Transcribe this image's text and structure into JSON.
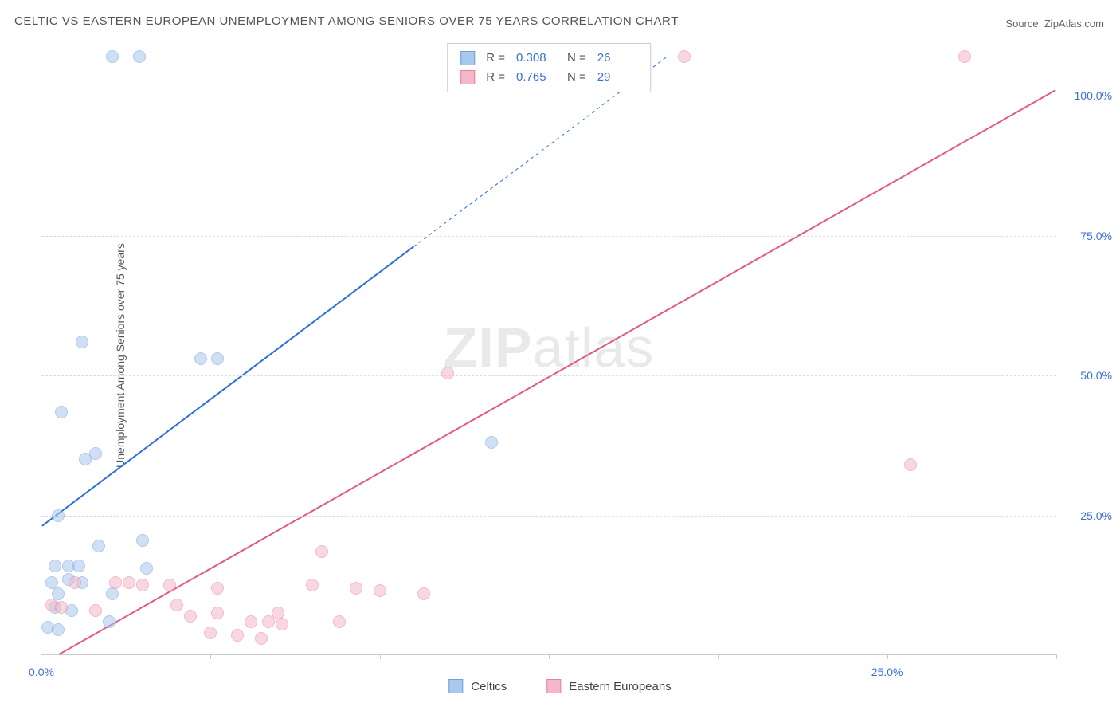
{
  "title": "CELTIC VS EASTERN EUROPEAN UNEMPLOYMENT AMONG SENIORS OVER 75 YEARS CORRELATION CHART",
  "source_label": "Source:",
  "source_name": "ZipAtlas.com",
  "y_axis_label": "Unemployment Among Seniors over 75 years",
  "watermark_prefix": "ZIP",
  "watermark_suffix": "atlas",
  "chart": {
    "type": "scatter",
    "background_color": "#ffffff",
    "grid_color": "#dddddd",
    "xlim": [
      0,
      30
    ],
    "ylim": [
      0,
      110
    ],
    "x_ticks": [
      0,
      25
    ],
    "x_tick_labels": [
      "0.0%",
      "25.0%"
    ],
    "x_minor_ticks": [
      5,
      10,
      15,
      20,
      25,
      30
    ],
    "y_ticks": [
      25,
      50,
      75,
      100
    ],
    "y_tick_labels": [
      "25.0%",
      "50.0%",
      "75.0%",
      "100.0%"
    ],
    "y_tick_color": "#3a6fd8",
    "point_radius": 8,
    "point_opacity": 0.55,
    "line_width": 2
  },
  "series": [
    {
      "name": "Celtics",
      "color_fill": "#a8c8ec",
      "color_stroke": "#6ca0dc",
      "swatch_fill": "#a8c8ec",
      "swatch_border": "#6ca0dc",
      "R": "0.308",
      "N": "26",
      "trend": {
        "x1": 0,
        "y1": 23,
        "x2": 11,
        "y2": 73,
        "dash_x2": 18.5,
        "dash_y2": 107,
        "color": "#2e6fd8"
      },
      "points": [
        [
          2.1,
          107
        ],
        [
          2.9,
          107
        ],
        [
          1.2,
          56
        ],
        [
          4.7,
          53
        ],
        [
          5.2,
          53
        ],
        [
          0.6,
          43.5
        ],
        [
          1.6,
          36
        ],
        [
          1.3,
          35
        ],
        [
          13.3,
          38
        ],
        [
          0.5,
          25
        ],
        [
          3.0,
          20.5
        ],
        [
          1.7,
          19.5
        ],
        [
          0.4,
          16
        ],
        [
          0.8,
          16
        ],
        [
          1.1,
          16
        ],
        [
          3.1,
          15.5
        ],
        [
          0.3,
          13
        ],
        [
          0.8,
          13.5
        ],
        [
          1.2,
          13
        ],
        [
          0.5,
          11
        ],
        [
          2.1,
          11
        ],
        [
          0.4,
          8.5
        ],
        [
          0.9,
          8
        ],
        [
          2.0,
          6
        ],
        [
          0.2,
          5
        ],
        [
          0.5,
          4.5
        ]
      ]
    },
    {
      "name": "Eastern Europeans",
      "color_fill": "#f4b8c8",
      "color_stroke": "#e8809e",
      "swatch_fill": "#f4b8c8",
      "swatch_border": "#e8809e",
      "R": "0.765",
      "N": "29",
      "trend": {
        "x1": 0.5,
        "y1": 0,
        "x2": 30,
        "y2": 101,
        "color": "#e05a87"
      },
      "points": [
        [
          19.0,
          107
        ],
        [
          27.3,
          107
        ],
        [
          12.0,
          50.5
        ],
        [
          25.7,
          34
        ],
        [
          8.3,
          18.5
        ],
        [
          1.0,
          13
        ],
        [
          2.2,
          13
        ],
        [
          2.6,
          13
        ],
        [
          3.0,
          12.5
        ],
        [
          3.8,
          12.5
        ],
        [
          5.2,
          12
        ],
        [
          8.0,
          12.5
        ],
        [
          9.3,
          12
        ],
        [
          10.0,
          11.5
        ],
        [
          11.3,
          11
        ],
        [
          0.3,
          9
        ],
        [
          0.6,
          8.5
        ],
        [
          1.6,
          8
        ],
        [
          4.4,
          7
        ],
        [
          5.2,
          7.5
        ],
        [
          7.0,
          7.5
        ],
        [
          6.2,
          6
        ],
        [
          6.7,
          6
        ],
        [
          7.1,
          5.5
        ],
        [
          8.8,
          6
        ],
        [
          5.0,
          4
        ],
        [
          5.8,
          3.5
        ],
        [
          6.5,
          3
        ],
        [
          4.0,
          9
        ]
      ]
    }
  ],
  "stats_legend_labels": {
    "R": "R =",
    "N": "N ="
  },
  "legend": {
    "items": [
      "Celtics",
      "Eastern Europeans"
    ]
  }
}
